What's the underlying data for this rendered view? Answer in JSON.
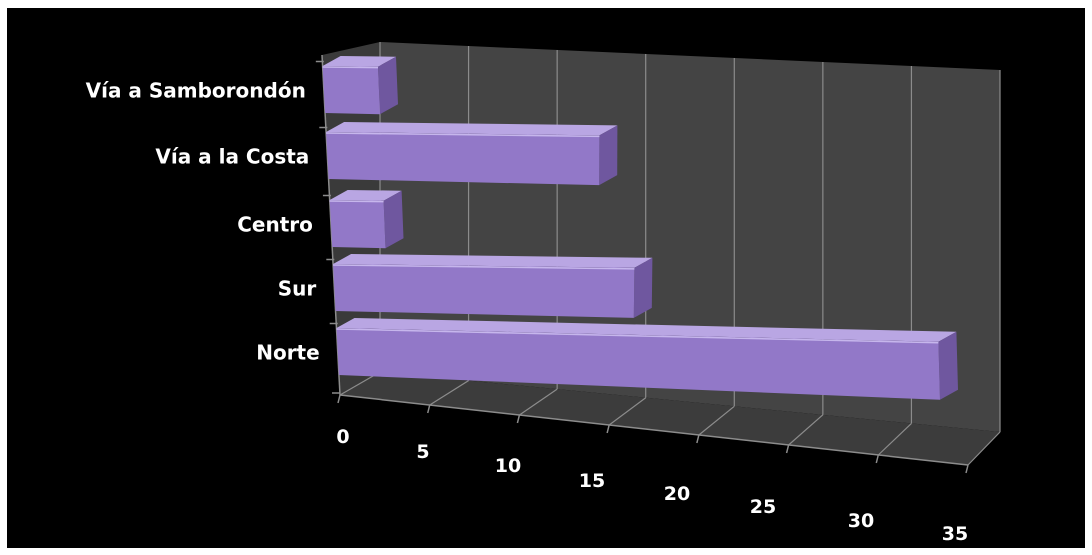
{
  "chart_data": {
    "type": "bar",
    "orientation": "horizontal",
    "style": "3d",
    "categories": [
      "Vía a Samborondón",
      "Vía a la Costa",
      "Centro",
      "Sur",
      "Norte"
    ],
    "values": [
      3,
      15,
      3,
      17,
      33
    ],
    "xlim": [
      0,
      35
    ],
    "x_ticks": [
      "0",
      "5",
      "10",
      "15",
      "20",
      "25",
      "30",
      "35"
    ],
    "title": "",
    "xlabel": "",
    "ylabel": "",
    "grid": true,
    "legend": "none",
    "colors": {
      "background": "#000000",
      "plot_wall": "#444444",
      "floor": "#3c3c3c",
      "gridline": "#8c8c8c",
      "bar_front": "#9278c8",
      "bar_top": "#b9a6e3",
      "bar_side": "#6f579f",
      "text": "#ffffff"
    }
  }
}
